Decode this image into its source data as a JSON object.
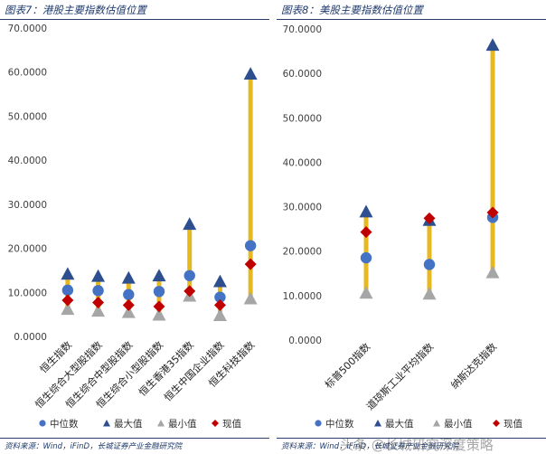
{
  "colors": {
    "bar": "#E8B820",
    "median": "#4472C4",
    "max": "#2E4F8F",
    "min": "#A6A6A6",
    "current": "#C00000",
    "axis_text": "#404040",
    "title": "#1f3a6e"
  },
  "legend": {
    "median": "中位数",
    "max": "最大值",
    "min": "最小值",
    "current": "现值"
  },
  "watermark": "头条 @长城研究深度策略",
  "chart_data": [
    {
      "type": "range-dot",
      "title": "图表7：港股主要指数估值位置",
      "source": "资料来源：Wind，iFinD，长城证券产业金融研究院",
      "ylim": [
        0,
        70
      ],
      "yticks": [
        "0.0000",
        "10.0000",
        "20.0000",
        "30.0000",
        "40.0000",
        "50.0000",
        "60.0000",
        "70.0000"
      ],
      "categories": [
        "恒生指数",
        "恒生综合大型股指数",
        "恒生综合中型股指数",
        "恒生综合小型股指数",
        "恒生香港35指数",
        "恒生中国企业指数",
        "恒生科技指数"
      ],
      "series": [
        {
          "name": "中位数",
          "values": [
            10.5,
            10.4,
            9.5,
            10.2,
            13.8,
            8.9,
            20.6
          ]
        },
        {
          "name": "最大值",
          "values": [
            14.2,
            13.7,
            13.3,
            13.8,
            25.5,
            12.5,
            59.6
          ]
        },
        {
          "name": "最小值",
          "values": [
            6.2,
            5.8,
            5.5,
            4.9,
            9.2,
            4.8,
            8.6
          ]
        },
        {
          "name": "现值",
          "values": [
            8.2,
            7.7,
            7.1,
            6.8,
            10.3,
            7.1,
            16.4
          ]
        }
      ]
    },
    {
      "type": "range-dot",
      "title": "图表8：美股主要指数估值位置",
      "source": "资料来源：Wind，iFinD，长城证券产业金融研究院",
      "ylim": [
        0,
        70
      ],
      "yticks": [
        "0.0000",
        "10.0000",
        "20.0000",
        "30.0000",
        "40.0000",
        "50.0000",
        "60.0000",
        "70.0000"
      ],
      "categories": [
        "标普500指数",
        "道琼斯工业平均指数",
        "纳斯达克指数"
      ],
      "series": [
        {
          "name": "中位数",
          "values": [
            18.5,
            17.0,
            27.6
          ]
        },
        {
          "name": "最大值",
          "values": [
            28.9,
            27.0,
            66.4
          ]
        },
        {
          "name": "最小值",
          "values": [
            10.6,
            10.4,
            15.2
          ]
        },
        {
          "name": "现值",
          "values": [
            24.3,
            27.4,
            28.7
          ]
        }
      ]
    }
  ]
}
